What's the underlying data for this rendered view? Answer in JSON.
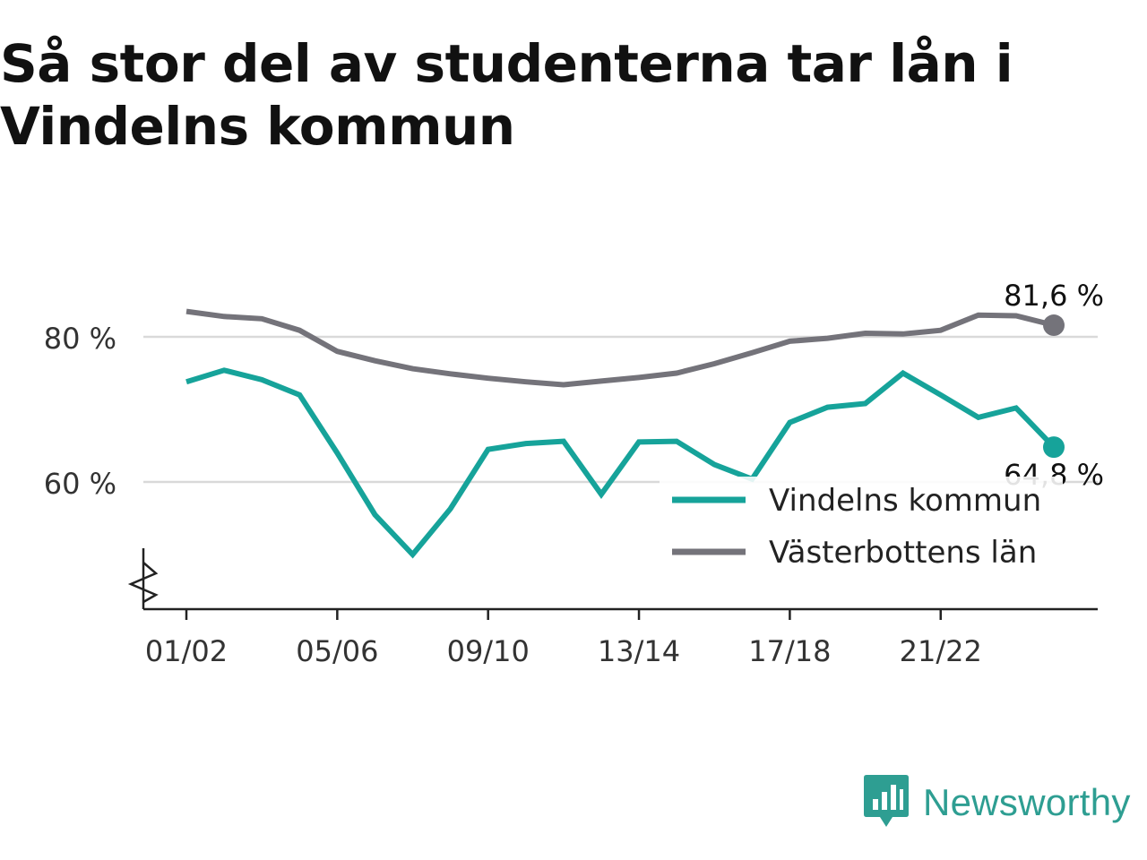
{
  "title": "Så stor del av studenterna tar lån i Vindelns kommun",
  "brand": {
    "name": "Newsworthy",
    "icon": "newsworthy-logo-icon",
    "color": "#2e9e92"
  },
  "chart_data": {
    "type": "line",
    "title": "Så stor del av studenterna tar lån i Vindelns kommun",
    "xlabel": "",
    "ylabel": "",
    "categories": [
      "01/02",
      "02/03",
      "03/04",
      "04/05",
      "05/06",
      "06/07",
      "07/08",
      "08/09",
      "09/10",
      "10/11",
      "11/12",
      "12/13",
      "13/14",
      "14/15",
      "15/16",
      "16/17",
      "17/18",
      "18/19",
      "19/20",
      "20/21",
      "21/22",
      "22/23",
      "23/24",
      "24/25"
    ],
    "x_ticks": [
      "01/02",
      "05/06",
      "09/10",
      "13/14",
      "17/18",
      "21/22"
    ],
    "y_ticks": [
      60,
      80
    ],
    "y_tick_labels": [
      "60 %",
      "80 %"
    ],
    "ylim": [
      43,
      90
    ],
    "y_axis_break": true,
    "grid": true,
    "legend_position": "bottom-right",
    "series": [
      {
        "name": "Vindelns kommun",
        "color": "#16a39a",
        "values": [
          73.8,
          75.4,
          74.1,
          72.0,
          64.0,
          55.5,
          50.0,
          56.3,
          64.5,
          65.3,
          65.6,
          58.3,
          65.5,
          65.6,
          62.4,
          60.4,
          68.2,
          70.3,
          70.8,
          75.0,
          72.0,
          68.9,
          70.2,
          64.8
        ],
        "end_label": "64,8 %"
      },
      {
        "name": "Västerbottens län",
        "color": "#74737a",
        "values": [
          83.5,
          82.8,
          82.5,
          80.9,
          78.0,
          76.7,
          75.6,
          74.9,
          74.3,
          73.8,
          73.4,
          73.9,
          74.4,
          75.0,
          76.3,
          77.8,
          79.4,
          79.8,
          80.5,
          80.4,
          80.9,
          83.0,
          82.9,
          81.6
        ],
        "end_label": "81,6 %"
      }
    ]
  }
}
